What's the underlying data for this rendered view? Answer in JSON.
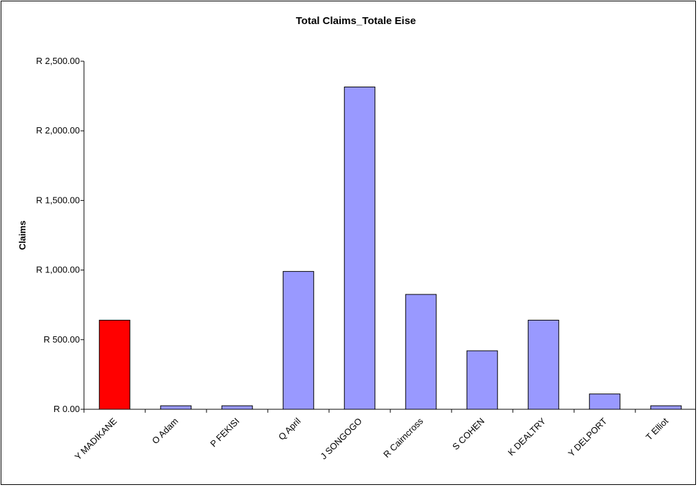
{
  "chart_data": {
    "type": "bar",
    "title": "Total Claims_Totale Eise",
    "xlabel": "",
    "ylabel": "Claims",
    "ylim": [
      0,
      2500
    ],
    "y_ticks": [
      0,
      500,
      1000,
      1500,
      2000,
      2500
    ],
    "y_tick_labels": [
      "R 0.00",
      "R 500.00",
      "R 1,000.00",
      "R 1,500.00",
      "R 2,000.00",
      "R 2,500.00"
    ],
    "grid": false,
    "legend": "none",
    "categories": [
      "Y MADIKANE",
      "O Adam",
      "P FEKISI",
      "Q April",
      "J SONGOGO",
      "R Cairncross",
      "S COHEN",
      "K DEALTRY",
      "Y DELPORT",
      "T Elliot"
    ],
    "values": [
      640,
      25,
      25,
      990,
      2315,
      825,
      420,
      640,
      110,
      25
    ],
    "bar_colors": [
      "#ff0000",
      "#9999ff",
      "#9999ff",
      "#9999ff",
      "#9999ff",
      "#9999ff",
      "#9999ff",
      "#9999ff",
      "#9999ff",
      "#9999ff"
    ]
  }
}
